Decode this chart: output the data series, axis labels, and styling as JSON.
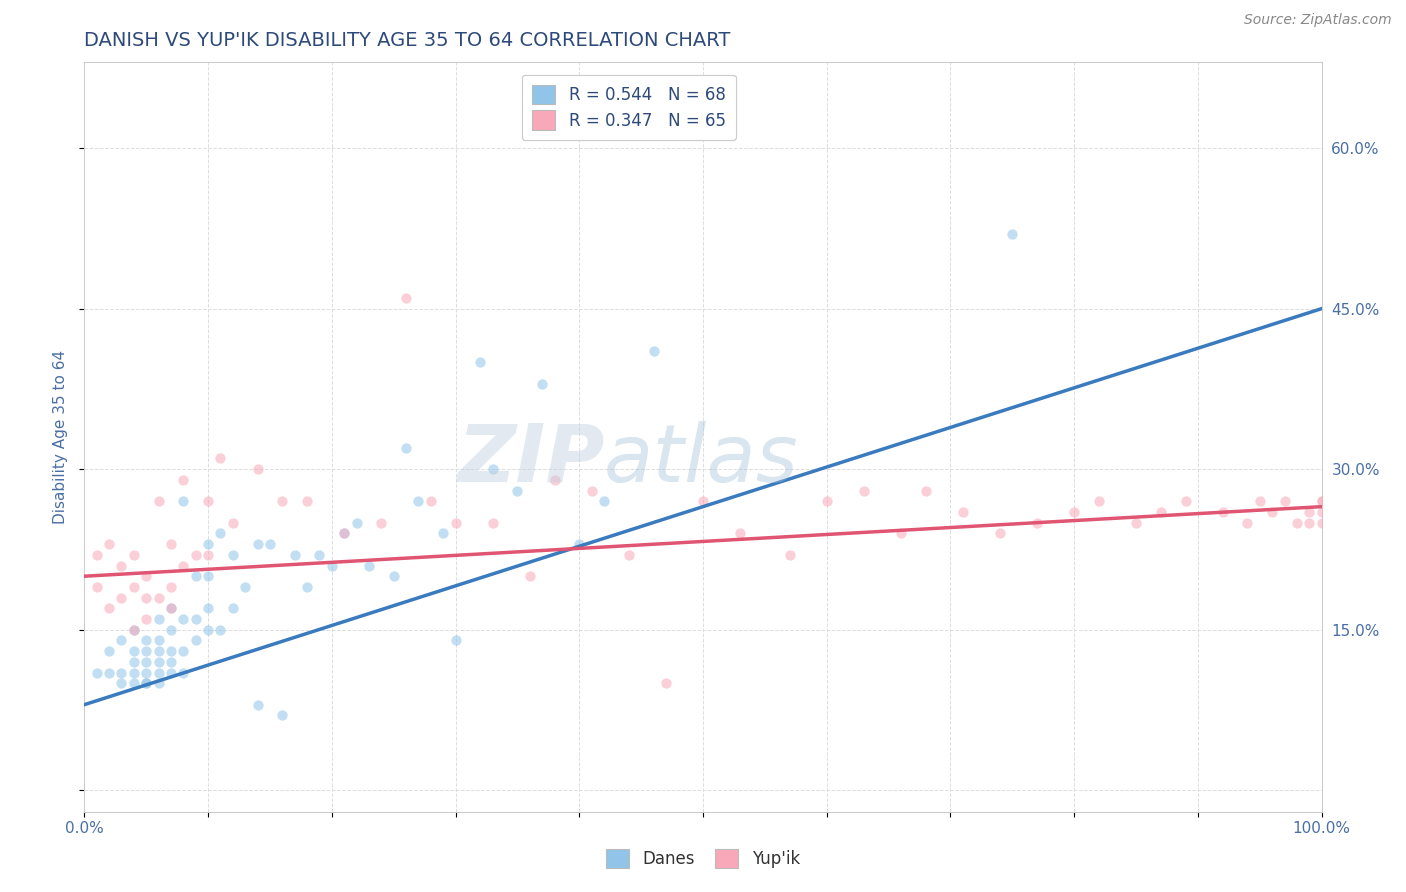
{
  "title": "DANISH VS YUP'IK DISABILITY AGE 35 TO 64 CORRELATION CHART",
  "source_text": "Source: ZipAtlas.com",
  "ylabel": "Disability Age 35 to 64",
  "xlim": [
    0.0,
    1.0
  ],
  "ylim": [
    -0.02,
    0.68
  ],
  "x_ticks": [
    0.0,
    0.1,
    0.2,
    0.3,
    0.4,
    0.5,
    0.6,
    0.7,
    0.8,
    0.9,
    1.0
  ],
  "x_tick_labels": [
    "0.0%",
    "",
    "",
    "",
    "",
    "",
    "",
    "",
    "",
    "",
    "100.0%"
  ],
  "y_ticks": [
    0.0,
    0.15,
    0.3,
    0.45,
    0.6
  ],
  "y_tick_labels_right": [
    "",
    "15.0%",
    "30.0%",
    "45.0%",
    "60.0%"
  ],
  "title_color": "#2E4A7A",
  "title_fontsize": 14,
  "source_color": "#888888",
  "source_fontsize": 10,
  "legend_r1": "R = 0.544",
  "legend_n1": "N = 68",
  "legend_r2": "R = 0.347",
  "legend_n2": "N = 65",
  "danes_scatter_color": "#90c4e8",
  "yupik_scatter_color": "#f8a8b8",
  "line_danes_color": "#3a7abf",
  "line_yupik_color": "#e05572",
  "danes_line_start_y": 0.08,
  "danes_line_end_y": 0.45,
  "yupik_line_start_y": 0.2,
  "yupik_line_end_y": 0.265,
  "watermark_top": "ZIP",
  "watermark_bottom": "atlas",
  "background_color": "#ffffff",
  "grid_color": "#dddddd",
  "tick_color": "#4a6fa5",
  "tick_fontsize": 11,
  "marker_size": 55,
  "marker_alpha": 0.55,
  "danes_scatter_x": [
    0.01,
    0.02,
    0.02,
    0.03,
    0.03,
    0.03,
    0.04,
    0.04,
    0.04,
    0.04,
    0.04,
    0.05,
    0.05,
    0.05,
    0.05,
    0.05,
    0.05,
    0.06,
    0.06,
    0.06,
    0.06,
    0.06,
    0.06,
    0.07,
    0.07,
    0.07,
    0.07,
    0.07,
    0.08,
    0.08,
    0.08,
    0.08,
    0.09,
    0.09,
    0.09,
    0.1,
    0.1,
    0.1,
    0.1,
    0.11,
    0.11,
    0.12,
    0.12,
    0.13,
    0.14,
    0.14,
    0.15,
    0.16,
    0.17,
    0.18,
    0.19,
    0.2,
    0.21,
    0.22,
    0.23,
    0.25,
    0.26,
    0.27,
    0.29,
    0.3,
    0.32,
    0.33,
    0.35,
    0.37,
    0.4,
    0.42,
    0.46,
    0.75
  ],
  "danes_scatter_y": [
    0.11,
    0.11,
    0.13,
    0.1,
    0.11,
    0.14,
    0.1,
    0.11,
    0.12,
    0.13,
    0.15,
    0.1,
    0.1,
    0.11,
    0.12,
    0.13,
    0.14,
    0.1,
    0.11,
    0.12,
    0.13,
    0.14,
    0.16,
    0.11,
    0.12,
    0.13,
    0.15,
    0.17,
    0.11,
    0.13,
    0.16,
    0.27,
    0.14,
    0.16,
    0.2,
    0.15,
    0.17,
    0.2,
    0.23,
    0.15,
    0.24,
    0.17,
    0.22,
    0.19,
    0.08,
    0.23,
    0.23,
    0.07,
    0.22,
    0.19,
    0.22,
    0.21,
    0.24,
    0.25,
    0.21,
    0.2,
    0.32,
    0.27,
    0.24,
    0.14,
    0.4,
    0.3,
    0.28,
    0.38,
    0.23,
    0.27,
    0.41,
    0.52
  ],
  "yupik_scatter_x": [
    0.01,
    0.01,
    0.02,
    0.02,
    0.03,
    0.03,
    0.04,
    0.04,
    0.04,
    0.05,
    0.05,
    0.05,
    0.06,
    0.06,
    0.07,
    0.07,
    0.07,
    0.08,
    0.08,
    0.09,
    0.1,
    0.1,
    0.11,
    0.12,
    0.14,
    0.16,
    0.18,
    0.21,
    0.24,
    0.26,
    0.28,
    0.3,
    0.33,
    0.36,
    0.38,
    0.41,
    0.44,
    0.47,
    0.5,
    0.53,
    0.57,
    0.6,
    0.63,
    0.66,
    0.68,
    0.71,
    0.74,
    0.77,
    0.8,
    0.82,
    0.85,
    0.87,
    0.89,
    0.92,
    0.94,
    0.95,
    0.96,
    0.97,
    0.98,
    0.99,
    0.99,
    1.0,
    1.0,
    1.0,
    1.0
  ],
  "yupik_scatter_y": [
    0.19,
    0.22,
    0.17,
    0.23,
    0.18,
    0.21,
    0.15,
    0.19,
    0.22,
    0.16,
    0.18,
    0.2,
    0.18,
    0.27,
    0.19,
    0.23,
    0.17,
    0.21,
    0.29,
    0.22,
    0.27,
    0.22,
    0.31,
    0.25,
    0.3,
    0.27,
    0.27,
    0.24,
    0.25,
    0.46,
    0.27,
    0.25,
    0.25,
    0.2,
    0.29,
    0.28,
    0.22,
    0.1,
    0.27,
    0.24,
    0.22,
    0.27,
    0.28,
    0.24,
    0.28,
    0.26,
    0.24,
    0.25,
    0.26,
    0.27,
    0.25,
    0.26,
    0.27,
    0.26,
    0.25,
    0.27,
    0.26,
    0.27,
    0.25,
    0.25,
    0.26,
    0.26,
    0.27,
    0.25,
    0.27
  ]
}
